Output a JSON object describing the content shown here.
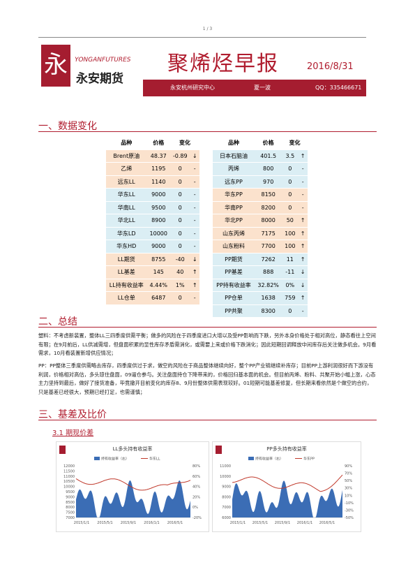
{
  "page_number": "1 / 3",
  "header": {
    "logo_en": "YONGANFUTURES",
    "logo_cn": "永安期货",
    "title": "聚烯烃早报",
    "date": "2016/8/31",
    "org": "永安杭州研究中心",
    "author": "夏一波",
    "contact": "QQ：335466671"
  },
  "section1": {
    "heading": "一、数据变化",
    "left_table": {
      "columns": [
        "品种",
        "价格",
        "变化"
      ],
      "rows": [
        [
          "Brent原油",
          "48.37",
          "-0.89",
          "↓"
        ],
        [
          "乙烯",
          "1195",
          "0",
          "-"
        ],
        [
          "远东LL",
          "1140",
          "0",
          "-"
        ],
        [
          "华东LL",
          "9000",
          "0",
          "-"
        ],
        [
          "华南LL",
          "9500",
          "0",
          "-"
        ],
        [
          "华北LL",
          "8900",
          "0",
          "-"
        ],
        [
          "华东LD",
          "10000",
          "0",
          "-"
        ],
        [
          "华东HD",
          "9000",
          "0",
          "-"
        ],
        [
          "LL期货",
          "8755",
          "-40",
          "↓"
        ],
        [
          "LL基差",
          "145",
          "40",
          "↑"
        ],
        [
          "LL持有收益率",
          "4.44%",
          "1%",
          "↑"
        ],
        [
          "LL仓单",
          "6487",
          "0",
          "-"
        ]
      ]
    },
    "right_table": {
      "columns": [
        "品种",
        "价格",
        "变化"
      ],
      "rows": [
        [
          "日本石脑油",
          "401.5",
          "3.5",
          "↑"
        ],
        [
          "丙烯",
          "800",
          "0",
          "-"
        ],
        [
          "远东PP",
          "970",
          "0",
          "-"
        ],
        [
          "华东PP",
          "8150",
          "0",
          "-"
        ],
        [
          "华南PP",
          "8200",
          "0",
          "-"
        ],
        [
          "华北PP",
          "8000",
          "50",
          "↑"
        ],
        [
          "山东丙烯",
          "7175",
          "100",
          "↑"
        ],
        [
          "山东粉料",
          "7700",
          "100",
          "↑"
        ],
        [
          "PP期货",
          "7262",
          "11",
          "↑"
        ],
        [
          "PP基差",
          "888",
          "-11",
          "↓"
        ],
        [
          "PP持有收益率",
          "32.82%",
          "0%",
          "↓"
        ],
        [
          "PP仓单",
          "1638",
          "759",
          "↑"
        ],
        [
          "PP共聚",
          "8300",
          "0",
          "-"
        ]
      ]
    }
  },
  "section2": {
    "heading": "二、总结",
    "paragraphs": [
      "塑料：不考虑新装置，整体LL三四季度供需平衡；做多的风险在于四季度进口大增以及受PP影响而下跌，另外本身价格处于相对高位，静态看往上空间有限；在9月前后，LL供减需增，但盘面积累的显性库存矛盾需消化，或需要上来或价格下跌消化；因此短期回调释放中间库存后关注做多机会。9月看需求，10月看装置新增供应情况；",
      "PP：PP整体三季度供需略去库存，四季度供过于求，做空的风险在于商品整体继续向好，整个PP产业链继续补库存；目前PP上游利润很好而下游没有利润，价格相对高估，多头琼住盘面，09逼仓参与。关注盘面持仓下降带来的，价格回归基本面的机会。但目前丙烯、粉料、共聚开始小幅上涨，心态主力坚持到最后，做好了接货准备，毕竟撤开目前变化的库存8、9月份整体供需表现较好。01短期可能基差修复，但长期来看依然是个做空的合约，只是基差已经很大，预期已经打足，也需谨慎；"
    ]
  },
  "section3": {
    "heading": "三、基差及比价",
    "subheading": "3.1 期现价差",
    "charts": [
      {
        "title": "LL多头持有收益率",
        "legend": [
          "持有收益率（右）",
          "华东LL"
        ],
        "left_ticks": [
          "12000",
          "11500",
          "11000",
          "10500",
          "10000",
          "9500",
          "9000",
          "8500",
          "8000",
          "7500",
          "7000"
        ],
        "right_ticks": [
          "80%",
          "60%",
          "40%",
          "20%",
          "0%",
          "-20%"
        ],
        "x_ticks": [
          "2015/1/1",
          "2015/5/1",
          "2015/9/1",
          "2016/1/1",
          "2016/5/1"
        ]
      },
      {
        "title": "PP多头持有收益率",
        "legend": [
          "持有收益率（右）",
          "华东PP"
        ],
        "left_ticks": [
          "11000",
          "10000",
          "9000",
          "8000",
          "7000",
          "6000"
        ],
        "right_ticks": [
          "90%",
          "70%",
          "50%",
          "30%",
          "10%",
          "-10%",
          "-30%",
          "-50%"
        ],
        "x_ticks": [
          "2015/1/1",
          "2015/5/1",
          "2015/9/1",
          "2016/1/1",
          "2016/5/1"
        ]
      }
    ]
  }
}
